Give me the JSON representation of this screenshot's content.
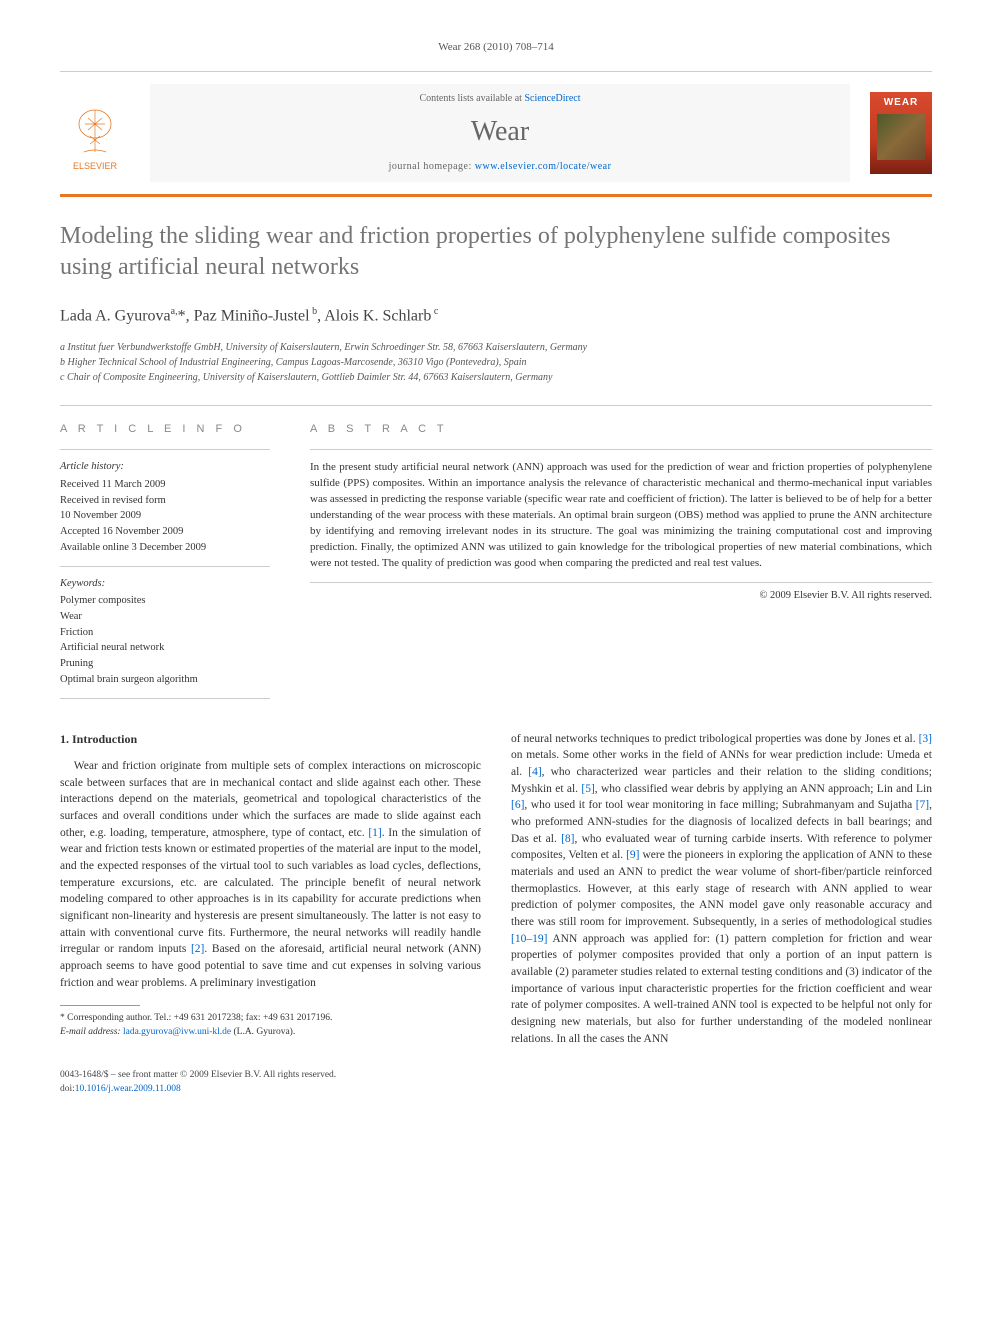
{
  "header": {
    "citation": "Wear 268 (2010) 708–714"
  },
  "masthead": {
    "publisher": "ELSEVIER",
    "contents_prefix": "Contents lists available at ",
    "contents_link": "ScienceDirect",
    "journal": "Wear",
    "homepage_prefix": "journal homepage: ",
    "homepage_link": "www.elsevier.com/locate/wear",
    "cover_title": "WEAR"
  },
  "title": "Modeling the sliding wear and friction properties of polyphenylene sulfide composites using artificial neural networks",
  "authors_html": "Lada A. Gyurova<sup>a,</sup>*, Paz Miniño-Justel<sup> b</sup>, Alois K. Schlarb<sup> c</sup>",
  "affiliations": [
    "a Institut fuer Verbundwerkstoffe GmbH, University of Kaiserslautern, Erwin Schroedinger Str. 58, 67663 Kaiserslautern, Germany",
    "b Higher Technical School of Industrial Engineering, Campus Lagoas-Marcosende, 36310 Vigo (Pontevedra), Spain",
    "c Chair of Composite Engineering, University of Kaiserslautern, Gottlieb Daimler Str. 44, 67663 Kaiserslautern, Germany"
  ],
  "article_info": {
    "heading": "A R T I C L E   I N F O",
    "history_label": "Article history:",
    "history": [
      "Received 11 March 2009",
      "Received in revised form",
      "10 November 2009",
      "Accepted 16 November 2009",
      "Available online 3 December 2009"
    ],
    "keywords_label": "Keywords:",
    "keywords": [
      "Polymer composites",
      "Wear",
      "Friction",
      "Artificial neural network",
      "Pruning",
      "Optimal brain surgeon algorithm"
    ]
  },
  "abstract": {
    "heading": "A B S T R A C T",
    "text": "In the present study artificial neural network (ANN) approach was used for the prediction of wear and friction properties of polyphenylene sulfide (PPS) composites. Within an importance analysis the relevance of characteristic mechanical and thermo-mechanical input variables was assessed in predicting the response variable (specific wear rate and coefficient of friction). The latter is believed to be of help for a better understanding of the wear process with these materials. An optimal brain surgeon (OBS) method was applied to prune the ANN architecture by identifying and removing irrelevant nodes in its structure. The goal was minimizing the training computational cost and improving prediction. Finally, the optimized ANN was utilized to gain knowledge for the tribological properties of new material combinations, which were not tested. The quality of prediction was good when comparing the predicted and real test values.",
    "copyright": "© 2009 Elsevier B.V. All rights reserved."
  },
  "body": {
    "section_heading": "1.  Introduction",
    "para1": "Wear and friction originate from multiple sets of complex interactions on microscopic scale between surfaces that are in mechanical contact and slide against each other. These interactions depend on the materials, geometrical and topological characteristics of the surfaces and overall conditions under which the surfaces are made to slide against each other, e.g. loading, temperature, atmosphere, type of contact, etc. [1]. In the simulation of wear and friction tests known or estimated properties of the material are input to the model, and the expected responses of the virtual tool to such variables as load cycles, deflections, temperature excursions, etc. are calculated. The principle benefit of neural network modeling compared to other approaches is in its capability for accurate predictions when significant non-linearity and hysteresis are present simultaneously. The latter is not easy to attain with conventional curve fits. Furthermore, the neural networks will readily handle irregular or random inputs [2]. Based on the aforesaid, artificial neural network (ANN) approach seems to have good potential to save time and cut expenses in solving various friction and wear problems. A preliminary investigation",
    "para2": "of neural networks techniques to predict tribological properties was done by Jones et al. [3] on metals. Some other works in the field of ANNs for wear prediction include: Umeda et al. [4], who characterized wear particles and their relation to the sliding conditions; Myshkin et al. [5], who classified wear debris by applying an ANN approach; Lin and Lin [6], who used it for tool wear monitoring in face milling; Subrahmanyam and Sujatha [7], who preformed ANN-studies for the diagnosis of localized defects in ball bearings; and Das et al. [8], who evaluated wear of turning carbide inserts. With reference to polymer composites, Velten et al. [9] were the pioneers in exploring the application of ANN to these materials and used an ANN to predict the wear volume of short-fiber/particle reinforced thermoplastics. However, at this early stage of research with ANN applied to wear prediction of polymer composites, the ANN model gave only reasonable accuracy and there was still room for improvement. Subsequently, in a series of methodological studies [10–19] ANN approach was applied for: (1) pattern completion for friction and wear properties of polymer composites provided that only a portion of an input pattern is available (2) parameter studies related to external testing conditions and (3) indicator of the importance of various input characteristic properties for the friction coefficient and wear rate of polymer composites. A well-trained ANN tool is expected to be helpful not only for designing new materials, but also for further understanding of the modeled nonlinear relations. In all the cases the ANN"
  },
  "footnote": {
    "corr": "* Corresponding author. Tel.: +49 631 2017238; fax: +49 631 2017196.",
    "email_label": "E-mail address: ",
    "email": "lada.gyurova@ivw.uni-kl.de",
    "email_suffix": " (L.A. Gyurova)."
  },
  "footer": {
    "left": "0043-1648/$ – see front matter © 2009 Elsevier B.V. All rights reserved.",
    "doi_label": "doi:",
    "doi": "10.1016/j.wear.2009.11.008"
  },
  "colors": {
    "accent": "#e87722",
    "link": "#0066cc",
    "title_gray": "#757575"
  }
}
